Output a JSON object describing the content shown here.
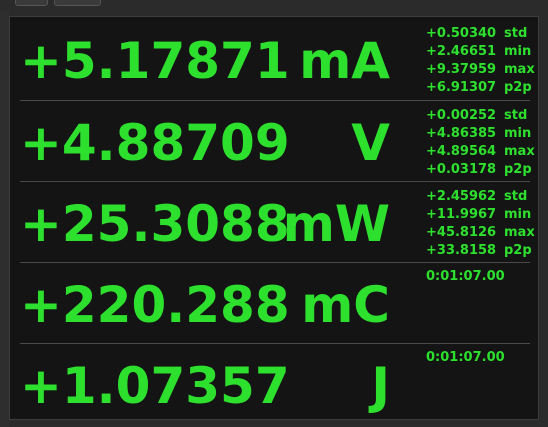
{
  "colors": {
    "accent": "#2ee02e",
    "background": "#141414"
  },
  "rows": [
    {
      "value": "+5.17871",
      "unit": "mA",
      "stats": [
        {
          "value": "+0.50340",
          "label": "std"
        },
        {
          "value": "+2.46651",
          "label": "min"
        },
        {
          "value": "+9.37959",
          "label": "max"
        },
        {
          "value": "+6.91307",
          "label": "p2p"
        }
      ]
    },
    {
      "value": "+4.88709",
      "unit": "V",
      "stats": [
        {
          "value": "+0.00252",
          "label": "std"
        },
        {
          "value": "+4.86385",
          "label": "min"
        },
        {
          "value": "+4.89564",
          "label": "max"
        },
        {
          "value": "+0.03178",
          "label": "p2p"
        }
      ]
    },
    {
      "value": "+25.3088",
      "unit": "mW",
      "stats": [
        {
          "value": "+2.45962",
          "label": "std"
        },
        {
          "value": "+11.9967",
          "label": "min"
        },
        {
          "value": "+45.8126",
          "label": "max"
        },
        {
          "value": "+33.8158",
          "label": "p2p"
        }
      ]
    },
    {
      "value": "+220.288",
      "unit": "mC",
      "timer": "0:01:07.00"
    },
    {
      "value": "+1.07357",
      "unit": "J",
      "timer": "0:01:07.00"
    }
  ]
}
